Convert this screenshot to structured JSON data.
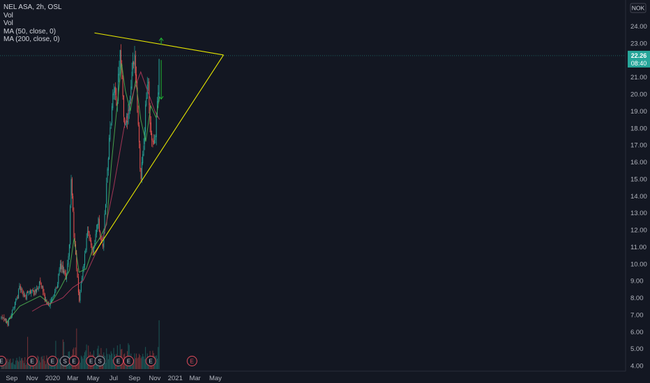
{
  "legend": {
    "title": "NEL ASA, 2h, OSL",
    "line1": "Vol",
    "line2": "Vol",
    "line3": "MA (50, close, 0)",
    "line4": "MA (200, close, 0)"
  },
  "currency": "NOK",
  "price_label": "22.26",
  "countdown_label": "08:40",
  "colors": {
    "background": "#131722",
    "up": "#26a69a",
    "down": "#ef5350",
    "ma50": "#4caf50",
    "ma200": "#b2385b",
    "trendline": "#e6e600",
    "arrow": "#21b534",
    "axis_text": "#b2b5be",
    "grid": "#1e222d",
    "price_badge": "#26a69a"
  },
  "chart_data": {
    "type": "candlestick",
    "title": "NEL ASA, 2h, OSL",
    "x_ticks": [
      "Sep",
      "Nov",
      "2020",
      "Mar",
      "May",
      "Jul",
      "Sep",
      "Nov",
      "2021",
      "Mar",
      "May"
    ],
    "y_ticks": [
      "4.00",
      "5.00",
      "6.00",
      "7.00",
      "8.00",
      "9.00",
      "10.00",
      "11.00",
      "12.00",
      "13.00",
      "14.00",
      "15.00",
      "16.00",
      "17.00",
      "18.00",
      "19.00",
      "20.00",
      "21.00",
      "22.00",
      "23.00",
      "24.00"
    ],
    "ylim": [
      4.0,
      24.0
    ],
    "last_price": 22.26,
    "price_path": [
      [
        "2019-08-01",
        6.8
      ],
      [
        "2019-08-20",
        6.5
      ],
      [
        "2019-09-10",
        7.6
      ],
      [
        "2019-09-25",
        8.6
      ],
      [
        "2019-10-10",
        8.0
      ],
      [
        "2019-10-25",
        8.4
      ],
      [
        "2019-11-10",
        8.3
      ],
      [
        "2019-11-25",
        8.9
      ],
      [
        "2019-12-10",
        7.8
      ],
      [
        "2019-12-25",
        7.6
      ],
      [
        "2020-01-10",
        8.4
      ],
      [
        "2020-01-25",
        9.9
      ],
      [
        "2020-02-10",
        9.1
      ],
      [
        "2020-02-20",
        11.2
      ],
      [
        "2020-02-25",
        15.1
      ],
      [
        "2020-03-05",
        11.6
      ],
      [
        "2020-03-20",
        7.8
      ],
      [
        "2020-04-05",
        10.4
      ],
      [
        "2020-04-15",
        11.8
      ],
      [
        "2020-04-30",
        10.7
      ],
      [
        "2020-05-15",
        12.6
      ],
      [
        "2020-05-30",
        11.0
      ],
      [
        "2020-06-10",
        14.6
      ],
      [
        "2020-06-20",
        17.8
      ],
      [
        "2020-07-01",
        20.2
      ],
      [
        "2020-07-12",
        19.6
      ],
      [
        "2020-07-20",
        22.9
      ],
      [
        "2020-08-01",
        18.6
      ],
      [
        "2020-08-10",
        18.0
      ],
      [
        "2020-08-20",
        20.0
      ],
      [
        "2020-09-01",
        22.5
      ],
      [
        "2020-09-10",
        19.2
      ],
      [
        "2020-09-20",
        15.1
      ],
      [
        "2020-10-01",
        17.8
      ],
      [
        "2020-10-10",
        21.1
      ],
      [
        "2020-10-20",
        17.5
      ],
      [
        "2020-10-30",
        16.6
      ],
      [
        "2020-11-10",
        20.0
      ],
      [
        "2020-11-15",
        22.3
      ]
    ],
    "volume_series": [
      "Vol"
    ],
    "series": [
      {
        "name": "MA (50, close, 0)",
        "values": [
          [
            "2019-08-15",
            6.5
          ],
          [
            "2019-09-25",
            7.5
          ],
          [
            "2019-10-25",
            7.8
          ],
          [
            "2019-11-25",
            8.1
          ],
          [
            "2019-12-25",
            7.6
          ],
          [
            "2020-01-25",
            8.6
          ],
          [
            "2020-02-20",
            9.6
          ],
          [
            "2020-03-05",
            11.5
          ],
          [
            "2020-03-20",
            9.5
          ],
          [
            "2020-04-10",
            9.7
          ],
          [
            "2020-04-30",
            10.9
          ],
          [
            "2020-05-20",
            11.5
          ],
          [
            "2020-06-10",
            12.3
          ],
          [
            "2020-06-25",
            16.0
          ],
          [
            "2020-07-10",
            19.0
          ],
          [
            "2020-07-25",
            21.8
          ],
          [
            "2020-08-05",
            20.2
          ],
          [
            "2020-08-20",
            19.0
          ],
          [
            "2020-09-05",
            20.8
          ],
          [
            "2020-09-20",
            18.5
          ],
          [
            "2020-10-05",
            17.2
          ],
          [
            "2020-10-20",
            19.3
          ],
          [
            "2020-11-05",
            18.6
          ],
          [
            "2020-11-15",
            19.8
          ]
        ]
      },
      {
        "name": "MA (200, close, 0)",
        "values": [
          [
            "2019-11-01",
            7.2
          ],
          [
            "2019-12-01",
            7.55
          ],
          [
            "2020-01-01",
            7.7
          ],
          [
            "2020-02-01",
            8.0
          ],
          [
            "2020-03-01",
            8.6
          ],
          [
            "2020-04-01",
            9.0
          ],
          [
            "2020-05-01",
            10.3
          ],
          [
            "2020-06-01",
            11.6
          ],
          [
            "2020-07-01",
            14.5
          ],
          [
            "2020-08-01",
            18.0
          ],
          [
            "2020-09-01",
            20.3
          ],
          [
            "2020-09-20",
            21.3
          ],
          [
            "2020-10-10",
            20.2
          ],
          [
            "2020-11-01",
            19.0
          ],
          [
            "2020-11-15",
            18.5
          ]
        ]
      }
    ],
    "annotations": {
      "trendlines": [
        {
          "from": [
            "2020-05-05",
            23.6
          ],
          "to": [
            "2021-05-25",
            22.3
          ]
        },
        {
          "from": [
            "2020-05-01",
            10.5
          ],
          "to": [
            "2021-05-25",
            22.3
          ]
        }
      ],
      "arrows": [
        {
          "at": "2020-11-20",
          "from": 22.9,
          "to": 23.3
        },
        {
          "at": "2020-11-20",
          "from": 22.0,
          "to": 19.7
        }
      ],
      "event_markers": [
        {
          "date": "2019-08-01",
          "label": "E"
        },
        {
          "date": "2019-11-01",
          "label": "E"
        },
        {
          "date": "2020-01-01",
          "label": "E"
        },
        {
          "date": "2020-02-07",
          "label": "S"
        },
        {
          "date": "2020-03-05",
          "label": "E"
        },
        {
          "date": "2020-04-25",
          "label": "E"
        },
        {
          "date": "2020-05-21",
          "label": "S"
        },
        {
          "date": "2020-07-15",
          "label": "E"
        },
        {
          "date": "2020-08-15",
          "label": "E"
        },
        {
          "date": "2020-10-20",
          "label": "E"
        },
        {
          "date": "2021-02-20",
          "label": "E"
        }
      ]
    },
    "grid": false,
    "legend_position": "top-left"
  }
}
